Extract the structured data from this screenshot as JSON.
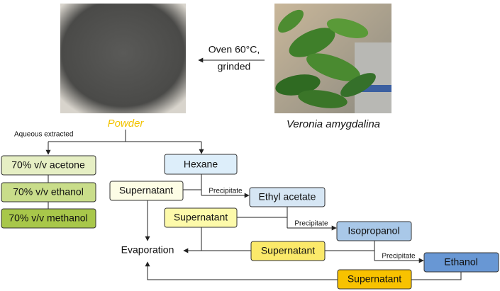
{
  "images": {
    "powder_caption": "Powder",
    "plant_caption": "Veronia amygdalina"
  },
  "drying": {
    "line1": "Oven 60°C,",
    "line2": "grinded"
  },
  "aqueous": {
    "label": "Aqueous extracted",
    "steps": [
      "70% v/v acetone",
      "70% v/v ethanol",
      "70% v/v methanol"
    ]
  },
  "solvents": [
    "Hexane",
    "Ethyl acetate",
    "Isopropanol",
    "Ethanol"
  ],
  "supernatants": [
    "Supernatant",
    "Supernatant",
    "Supernatant",
    "Supernatant"
  ],
  "precipitate_labels": [
    "Precipitate",
    "Precipitate",
    "Precipitate"
  ],
  "evaporation": "Evaporation"
}
